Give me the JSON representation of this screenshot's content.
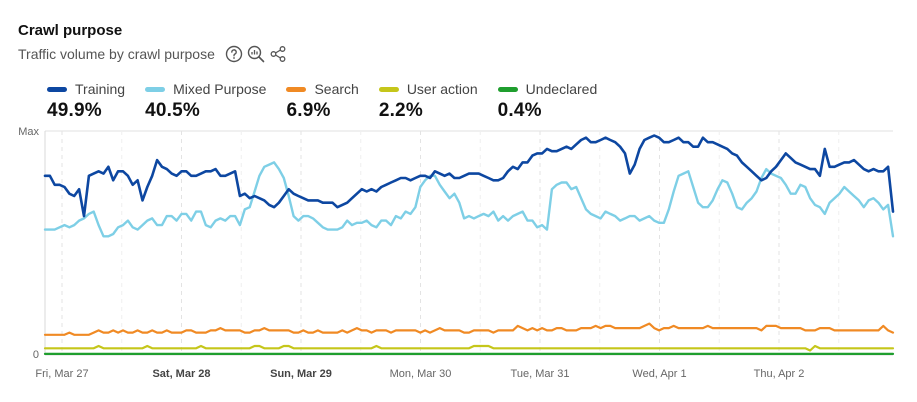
{
  "header": {
    "title": "Crawl purpose",
    "subtitle": "Traffic volume by crawl purpose",
    "icons": [
      "help-icon",
      "zoom-chart-icon",
      "share-icon"
    ]
  },
  "chart_data": {
    "type": "line",
    "y_tick_labels": [
      "Max",
      "0"
    ],
    "x_tick_labels": [
      {
        "label": "Fri, Mar 27",
        "bold": false
      },
      {
        "label": "Sat, Mar 28",
        "bold": true
      },
      {
        "label": "Sun, Mar 29",
        "bold": true
      },
      {
        "label": "Mon, Mar 30",
        "bold": false
      },
      {
        "label": "Tue, Mar 31",
        "bold": false
      },
      {
        "label": "Wed, Apr 1",
        "bold": false
      },
      {
        "label": "Thu, Apr 2",
        "bold": false
      }
    ],
    "ylim": [
      0,
      100
    ],
    "grid": "vertical-dashed",
    "legend": "top-left",
    "series": [
      {
        "name": "Training",
        "share": "49.9%",
        "color": "#0d47a1",
        "values": [
          80,
          80,
          76,
          76,
          75,
          72,
          71,
          74,
          62,
          80,
          81,
          82,
          81,
          84,
          78,
          82,
          82,
          80,
          76,
          78,
          69,
          75,
          80,
          87,
          84,
          83,
          81,
          80,
          82,
          82,
          80,
          80,
          81,
          82,
          82,
          83,
          80,
          80,
          81,
          82,
          71,
          72,
          70,
          71,
          70,
          69,
          67,
          66,
          68,
          71,
          74,
          72,
          71,
          70,
          69,
          69,
          69,
          68,
          68,
          68,
          66,
          67,
          68,
          70,
          72,
          74,
          73,
          74,
          73,
          75,
          76,
          77,
          78,
          79,
          79,
          78,
          79,
          80,
          80,
          79,
          82,
          81,
          80,
          81,
          79,
          79,
          80,
          81,
          81,
          81,
          80,
          79,
          78,
          78,
          79,
          82,
          84,
          83,
          86,
          86,
          89,
          90,
          90,
          92,
          91,
          91,
          92,
          93,
          92,
          94,
          96,
          97,
          95,
          95,
          96,
          97,
          96,
          95,
          93,
          90,
          81,
          85,
          92,
          96,
          97,
          98,
          97,
          95,
          95,
          96,
          97,
          95,
          95,
          93,
          93,
          97,
          95,
          95,
          94,
          93,
          92,
          90,
          89,
          86,
          84,
          82,
          80,
          78,
          79,
          82,
          84,
          87,
          90,
          88,
          86,
          85,
          84,
          83,
          83,
          80,
          92,
          84,
          84,
          85,
          86,
          86,
          87,
          85,
          83,
          82,
          83,
          82,
          82,
          84,
          64
        ],
        "ylim_note": "Max"
      },
      {
        "name": "Mixed Purpose",
        "share": "40.5%",
        "color": "#7ecfe6",
        "values": [
          56,
          56,
          56,
          57,
          58,
          57,
          58,
          60,
          61,
          63,
          64,
          58,
          53,
          53,
          54,
          57,
          58,
          60,
          57,
          56,
          58,
          60,
          61,
          58,
          58,
          62,
          62,
          60,
          63,
          63,
          60,
          64,
          64,
          58,
          57,
          60,
          61,
          60,
          62,
          62,
          58,
          65,
          66,
          73,
          80,
          84,
          85,
          86,
          83,
          79,
          71,
          62,
          60,
          62,
          62,
          61,
          59,
          57,
          56,
          56,
          56,
          57,
          60,
          58,
          59,
          59,
          60,
          58,
          57,
          60,
          60,
          58,
          62,
          61,
          64,
          63,
          66,
          75,
          78,
          80,
          80,
          76,
          73,
          70,
          72,
          68,
          61,
          62,
          61,
          62,
          63,
          62,
          64,
          60,
          62,
          60,
          62,
          63,
          64,
          60,
          60,
          57,
          58,
          56,
          74,
          76,
          77,
          77,
          74,
          75,
          70,
          65,
          63,
          62,
          61,
          64,
          63,
          62,
          60,
          61,
          62,
          62,
          60,
          61,
          62,
          60,
          59,
          59,
          65,
          73,
          80,
          81,
          82,
          75,
          68,
          66,
          66,
          69,
          74,
          78,
          77,
          72,
          66,
          65,
          68,
          70,
          73,
          79,
          83,
          81,
          80,
          79,
          76,
          72,
          72,
          76,
          75,
          70,
          67,
          66,
          63,
          68,
          70,
          72,
          75,
          73,
          71,
          69,
          66,
          69,
          70,
          68,
          65,
          67,
          53
        ],
        "ylim_note": "Max"
      },
      {
        "name": "Search",
        "share": "6.9%",
        "color": "#f08a24",
        "values": [
          9,
          9,
          9,
          9,
          9,
          10,
          9,
          9,
          9,
          9,
          10,
          11,
          10,
          10,
          11,
          10,
          11,
          10,
          10,
          11,
          10,
          10,
          11,
          10,
          10,
          11,
          10,
          10,
          10,
          11,
          11,
          10,
          10,
          10,
          11,
          11,
          12,
          11,
          11,
          11,
          11,
          10,
          10,
          11,
          11,
          12,
          11,
          11,
          11,
          11,
          11,
          10,
          10,
          11,
          10,
          10,
          11,
          10,
          10,
          10,
          10,
          11,
          10,
          11,
          12,
          11,
          11,
          10,
          11,
          11,
          11,
          10,
          11,
          11,
          11,
          11,
          11,
          10,
          11,
          10,
          11,
          12,
          11,
          11,
          11,
          11,
          10,
          10,
          11,
          11,
          11,
          11,
          10,
          11,
          11,
          11,
          11,
          13,
          12,
          11,
          12,
          11,
          12,
          11,
          11,
          12,
          12,
          11,
          11,
          11,
          12,
          12,
          12,
          13,
          12,
          13,
          13,
          12,
          12,
          12,
          12,
          12,
          12,
          13,
          14,
          12,
          11,
          12,
          12,
          13,
          12,
          12,
          12,
          12,
          12,
          12,
          13,
          12,
          12,
          12,
          12,
          12,
          12,
          12,
          12,
          12,
          12,
          11,
          13,
          13,
          13,
          12,
          12,
          12,
          12,
          12,
          11,
          11,
          11,
          12,
          12,
          12,
          11,
          11,
          11,
          11,
          11,
          11,
          11,
          11,
          11,
          11,
          13,
          11,
          10
        ],
        "ylim_note": "Max"
      },
      {
        "name": "User action",
        "share": "2.2%",
        "color": "#c5c61a",
        "values": [
          3,
          3,
          3,
          3,
          3,
          3,
          3,
          3,
          3,
          3,
          3,
          4,
          3,
          3,
          3,
          3,
          3,
          3,
          3,
          3,
          3,
          4,
          3,
          3,
          3,
          3,
          3,
          3,
          3,
          3,
          3,
          3,
          4,
          3,
          3,
          3,
          3,
          3,
          3,
          3,
          3,
          3,
          3,
          4,
          4,
          3,
          3,
          3,
          3,
          4,
          4,
          3,
          3,
          3,
          3,
          3,
          3,
          3,
          3,
          3,
          3,
          3,
          3,
          3,
          3,
          3,
          3,
          3,
          4,
          3,
          3,
          3,
          3,
          3,
          3,
          3,
          3,
          3,
          3,
          3,
          3,
          3,
          3,
          3,
          3,
          3,
          3,
          3,
          4,
          4,
          4,
          4,
          3,
          3,
          3,
          3,
          3,
          3,
          3,
          3,
          3,
          3,
          3,
          3,
          3,
          3,
          3,
          3,
          3,
          3,
          3,
          3,
          3,
          3,
          3,
          3,
          3,
          3,
          3,
          3,
          3,
          3,
          3,
          3,
          3,
          3,
          3,
          3,
          3,
          3,
          3,
          3,
          3,
          3,
          3,
          3,
          3,
          3,
          3,
          3,
          3,
          3,
          3,
          3,
          3,
          3,
          3,
          3,
          3,
          3,
          3,
          3,
          3,
          3,
          3,
          3,
          3,
          2,
          4,
          3,
          3,
          3,
          3,
          3,
          3,
          3,
          3,
          3,
          3,
          3,
          3,
          3,
          3,
          3,
          3
        ],
        "ylim_note": "Max"
      },
      {
        "name": "Undeclared",
        "share": "0.4%",
        "color": "#1f9e2e",
        "values": [
          0.5,
          0.5,
          0.5,
          0.5,
          0.5,
          0.5,
          0.5,
          0.5,
          0.5,
          0.5,
          0.5,
          0.5,
          0.5,
          0.5,
          0.5,
          0.5,
          0.5,
          0.5,
          0.5,
          0.5,
          0.5,
          0.5,
          0.5,
          0.5,
          0.5,
          0.5,
          0.5,
          0.5,
          0.5,
          0.5,
          0.5,
          0.5,
          0.5,
          0.5,
          0.5,
          0.5,
          0.5,
          0.5,
          0.5,
          0.5,
          0.5,
          0.5,
          0.5,
          0.5,
          0.5,
          0.5,
          0.5,
          0.5,
          0.5,
          0.5,
          0.5,
          0.5,
          0.5,
          0.5,
          0.5,
          0.5,
          0.5,
          0.5,
          0.5,
          0.5,
          0.5,
          0.5,
          0.5,
          0.5,
          0.5,
          0.5,
          0.5,
          0.5,
          0.5,
          0.5,
          0.5,
          0.5,
          0.5,
          0.5,
          0.5,
          0.5,
          0.5,
          0.5,
          0.5,
          0.5,
          0.5,
          0.5,
          0.5,
          0.5,
          0.5,
          0.5,
          0.5,
          0.5,
          0.5,
          0.5,
          0.5,
          0.5,
          0.5,
          0.5,
          0.5,
          0.5,
          0.5,
          0.5,
          0.5,
          0.5,
          0.5,
          0.5,
          0.5,
          0.5,
          0.5,
          0.5,
          0.5,
          0.5,
          0.5,
          0.5,
          0.5,
          0.5,
          0.5,
          0.5,
          0.5,
          0.5,
          0.5,
          0.5,
          0.5,
          0.5,
          0.5,
          0.5,
          0.5,
          0.5,
          0.5,
          0.5,
          0.5,
          0.5,
          0.5,
          0.5,
          0.5,
          0.5,
          0.5,
          0.5,
          0.5,
          0.5,
          0.5,
          0.5,
          0.5,
          0.5,
          0.5,
          0.5,
          0.5,
          0.5,
          0.5,
          0.5,
          0.5,
          0.5,
          0.5,
          0.5,
          0.5,
          0.5,
          0.5,
          0.5,
          0.5,
          0.5,
          0.5,
          0.5,
          0.5,
          0.5,
          0.5,
          0.5,
          0.5,
          0.5,
          0.5,
          0.5,
          0.5,
          0.5,
          0.5,
          0.5,
          0.5,
          0.5,
          0.5,
          0.5,
          0.5,
          0.5,
          0.5,
          0.5,
          0.5
        ],
        "ylim_note": "Max"
      }
    ]
  }
}
